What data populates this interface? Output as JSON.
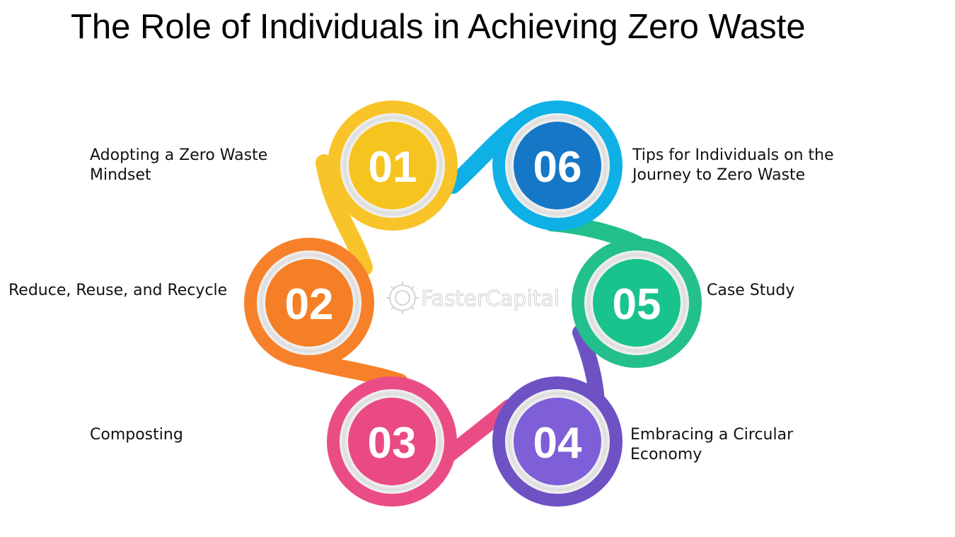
{
  "title": "The Role of Individuals in Achieving Zero Waste",
  "watermark": "FasterCapital",
  "steps": [
    {
      "number": "01",
      "label_lines": [
        "Adopting a Zero Waste",
        "Mindset"
      ],
      "ring_color": "#f8c42a",
      "core_color": "#f6c41f"
    },
    {
      "number": "02",
      "label_lines": [
        "Reduce, Reuse, and Recycle"
      ],
      "ring_color": "#f7812a",
      "core_color": "#f57f24"
    },
    {
      "number": "03",
      "label_lines": [
        "Composting"
      ],
      "ring_color": "#ea4d86",
      "core_color": "#e94a84"
    },
    {
      "number": "04",
      "label_lines": [
        "Embracing a Circular",
        "Economy"
      ],
      "ring_color": "#6e52c4",
      "core_color": "#7e5fd8"
    },
    {
      "number": "05",
      "label_lines": [
        "Case Study"
      ],
      "ring_color": "#23bf8d",
      "core_color": "#19c38e"
    },
    {
      "number": "06",
      "label_lines": [
        "Tips for Individuals on the",
        "Journey to Zero Waste"
      ],
      "ring_color": "#0fb0e6",
      "core_color": "#1577c6"
    }
  ]
}
